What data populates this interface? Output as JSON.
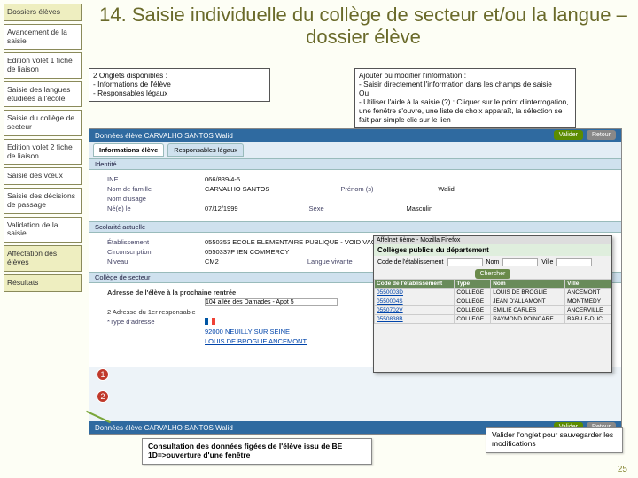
{
  "title": "14. Saisie individuelle du collège de secteur et/ou la langue – dossier élève",
  "sidebar": [
    {
      "label": "Dossiers élèves",
      "hl": true
    },
    {
      "label": "Avancement de la saisie",
      "hl": false
    },
    {
      "label": "Edition volet 1 fiche de liaison",
      "hl": false
    },
    {
      "label": "Saisie des langues étudiées à l'école",
      "hl": false
    },
    {
      "label": "Saisie du collège de secteur",
      "hl": false
    },
    {
      "label": "Edition volet 2 fiche de liaison",
      "hl": false
    },
    {
      "label": "Saisie des vœux",
      "hl": false
    },
    {
      "label": "Saisie des décisions de passage",
      "hl": false
    },
    {
      "label": "Validation de la saisie",
      "hl": false
    },
    {
      "label": "Affectation des élèves",
      "hl": true
    },
    {
      "label": "Résultats",
      "hl": true
    }
  ],
  "info1_title": "2 Onglets disponibles :",
  "info1_l1": "- Informations de l'élève",
  "info1_l2": "- Responsables légaux",
  "info2_title": "Ajouter ou modifier l'information :",
  "info2_l1": "- Saisir directement l'information dans les champs de saisie",
  "info2_ou": "Ou",
  "info2_l2": "- Utiliser l'aide à la saisie (?) : Cliquer sur le point d'interrogation, une fenêtre s'ouvre, une liste de choix apparaît, la sélection se fait par simple clic sur le lien",
  "sc": {
    "header": "Données élève CARVALHO SANTOS Walid",
    "tab1": "Informations élève",
    "tab2": "Responsables légaux",
    "sect_id": "Identité",
    "ine": "INE",
    "ine_v": "066/839/4-5",
    "nom": "Nom de famille",
    "nom_v": "CARVALHO SANTOS",
    "prenom": "Prénom (s)",
    "prenom_v": "Walid",
    "nomusage": "Nom d'usage",
    "ne": "Né(e) le",
    "ne_v": "07/12/1999",
    "sexe": "Sexe",
    "sexe_v": "Masculin",
    "sect_scol": "Scolarité actuelle",
    "etab": "Établissement",
    "etab_v": "0550353 ECOLE ELEMENTAIRE PUBLIQUE - VOID VACON",
    "circ": "Circonscription",
    "circ_v": "0550337P IEN COMMERCY",
    "niveau": "Niveau",
    "niveau_v": "CM2",
    "langue": "Langue vivante",
    "sect_coll": "Collège de secteur",
    "adr_lbl": "Adresse de l'élève à la prochaine rentrée",
    "addr_v": "104 allée des Damades - Appt 5",
    "adr2": "2 Adresse du 1er responsable",
    "type_adr": "*Type d'adresse",
    "cp": "92000 NEUILLY SUR SEINE",
    "college_v": "LOUIS DE BROGLIE ANCEMONT",
    "btn_valider": "Valider",
    "btn_retour": "Retour"
  },
  "popup": {
    "bar": "Affelnet 6ème - Mozilla Firefox",
    "title": "Collèges publics du département",
    "c_code": "Code de l'établissement",
    "c_nom": "Nom",
    "c_ville": "Ville",
    "btn": "Chercher",
    "h1": "Code de l'établissement",
    "h2": "Type",
    "h3": "Nom",
    "h4": "Ville",
    "rows": [
      [
        "0550003D",
        "COLLEGE",
        "LOUIS DE BROGLIE",
        "ANCEMONT"
      ],
      [
        "0550004S",
        "COLLEGE",
        "JEAN D'ALLAMONT",
        "MONTMEDY"
      ],
      [
        "0550702V",
        "COLLEGE",
        "EMILIE CARLES",
        "ANCERVILLE"
      ],
      [
        "0550838B",
        "COLLEGE",
        "RAYMOND POINCARE",
        "BAR-LE-DUC"
      ]
    ]
  },
  "callout1": "Consultation des données figées de l'élève issu de BE 1D=>ouverture d'une fenêtre",
  "callout2": "Valider l'onglet pour sauvegarder les modifications",
  "page": "25"
}
